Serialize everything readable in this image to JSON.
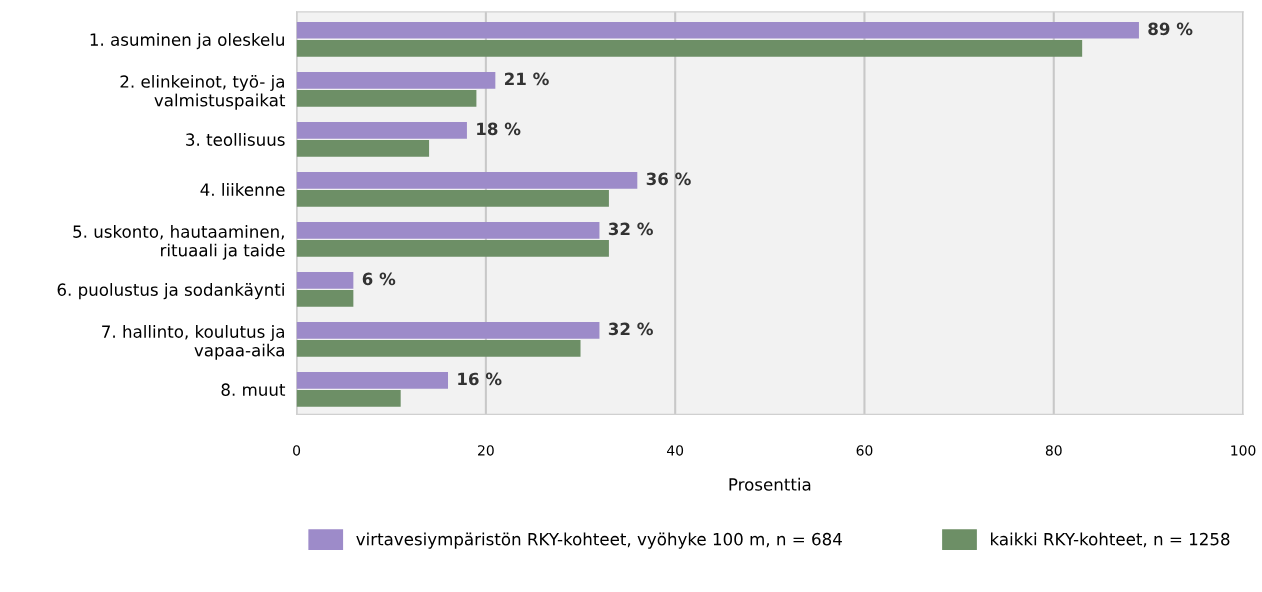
{
  "chart_data": {
    "type": "bar",
    "orientation": "horizontal",
    "xlabel": "Prosenttia",
    "categories": [
      "1. asuminen ja oleskelu",
      "2. elinkeinot, työ- ja\nvalmistuspaikat",
      "3. teollisuus",
      "4. liikenne",
      "5. uskonto, hautaaminen,\nrituaali ja taide",
      "6. puolustus ja sodankäynti",
      "7. hallinto, koulutus ja\nvapaa-aika",
      "8. muut"
    ],
    "series": [
      {
        "name": "virtavesiympäristön RKY-kohteet, vyöhyke 100 m, n = 684",
        "color": "#9d8bc9",
        "values": [
          89,
          21,
          18,
          36,
          32,
          6,
          32,
          16
        ],
        "value_labels": [
          "89 %",
          "21 %",
          "18 %",
          "36 %",
          "32 %",
          "6 %",
          "32 %",
          "16 %"
        ]
      },
      {
        "name": "kaikki RKY-kohteet, n = 1258",
        "color": "#6d8f66",
        "values": [
          83,
          19,
          14,
          33,
          33,
          6,
          30,
          11
        ]
      }
    ],
    "xlim": [
      0,
      100
    ],
    "xticks": [
      0,
      20,
      40,
      60,
      80,
      100
    ],
    "grid": "x",
    "legend": "bottom"
  }
}
